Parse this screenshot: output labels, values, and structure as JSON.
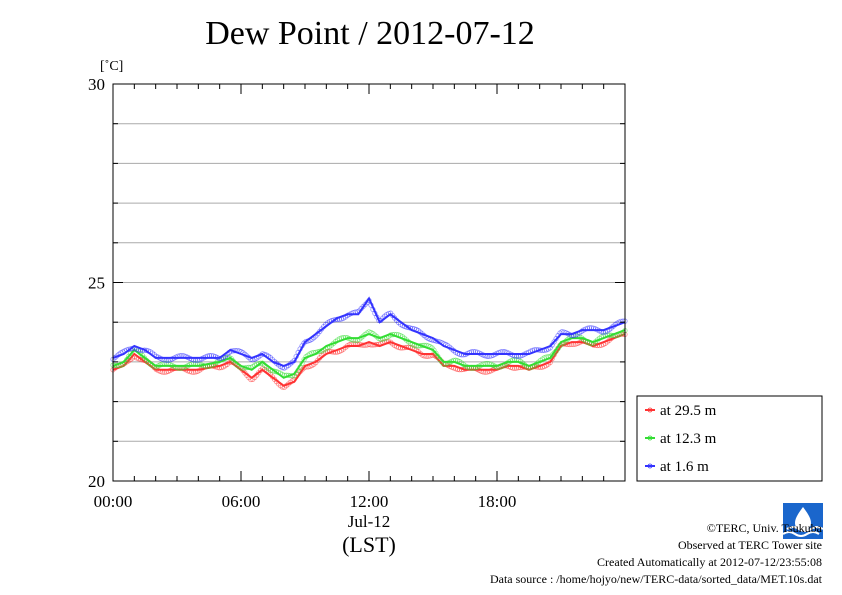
{
  "chart_data": {
    "type": "scatter",
    "title": "Dew Point / 2012-07-12",
    "ylabel": "[˚C]",
    "xlabel": "(LST)",
    "date_label": "Jul-12",
    "xlim": [
      0,
      24
    ],
    "ylim": [
      20,
      30
    ],
    "x_ticks": [
      {
        "value": 0,
        "label": "00:00"
      },
      {
        "value": 6,
        "label": "06:00"
      },
      {
        "value": 12,
        "label": "12:00"
      },
      {
        "value": 18,
        "label": "18:00"
      }
    ],
    "y_ticks": [
      {
        "value": 20,
        "label": "20"
      },
      {
        "value": 25,
        "label": "25"
      },
      {
        "value": 30,
        "label": "30"
      }
    ],
    "grid": true,
    "legend_position": "bottom-right, outside",
    "series": [
      {
        "name": "at 29.5 m",
        "color": "#ff3333",
        "x": [
          0,
          0.5,
          1,
          1.5,
          2,
          3,
          4,
          5,
          5.5,
          6,
          6.5,
          7,
          7.5,
          8,
          8.5,
          9,
          9.5,
          10,
          10.5,
          11,
          11.5,
          12,
          12.5,
          13,
          13.5,
          14,
          14.5,
          15,
          15.5,
          16,
          16.5,
          17,
          17.5,
          18,
          18.5,
          19,
          19.5,
          20,
          20.5,
          21,
          21.5,
          22,
          22.5,
          23,
          23.5,
          24
        ],
        "y": [
          22.8,
          22.9,
          23.2,
          23.0,
          22.8,
          22.8,
          22.8,
          22.9,
          23.0,
          22.8,
          22.6,
          22.8,
          22.6,
          22.4,
          22.5,
          22.9,
          23.0,
          23.2,
          23.3,
          23.4,
          23.4,
          23.5,
          23.4,
          23.5,
          23.4,
          23.3,
          23.2,
          23.2,
          22.9,
          22.9,
          22.8,
          22.8,
          22.8,
          22.8,
          22.9,
          22.9,
          22.8,
          22.9,
          23.0,
          23.4,
          23.5,
          23.5,
          23.4,
          23.5,
          23.6,
          23.7
        ]
      },
      {
        "name": "at 12.3 m",
        "color": "#33dd33",
        "x": [
          0,
          0.5,
          1,
          1.5,
          2,
          3,
          4,
          5,
          5.5,
          6,
          6.5,
          7,
          7.5,
          8,
          8.5,
          9,
          9.5,
          10,
          10.5,
          11,
          11.5,
          12,
          12.5,
          13,
          13.5,
          14,
          14.5,
          15,
          15.5,
          16,
          16.5,
          17,
          17.5,
          18,
          18.5,
          19,
          19.5,
          20,
          20.5,
          21,
          21.5,
          22,
          22.5,
          23,
          23.5,
          24
        ],
        "y": [
          22.9,
          23.0,
          23.3,
          23.1,
          22.9,
          22.9,
          22.9,
          23.0,
          23.1,
          22.9,
          22.8,
          23.0,
          22.8,
          22.6,
          22.7,
          23.1,
          23.2,
          23.4,
          23.5,
          23.6,
          23.6,
          23.7,
          23.6,
          23.7,
          23.6,
          23.5,
          23.4,
          23.3,
          23.0,
          23.0,
          22.9,
          22.9,
          22.9,
          22.9,
          23.0,
          23.0,
          22.9,
          23.0,
          23.1,
          23.5,
          23.6,
          23.6,
          23.5,
          23.6,
          23.7,
          23.8
        ]
      },
      {
        "name": "at 1.6 m",
        "color": "#3333ff",
        "x": [
          0,
          0.5,
          1,
          1.5,
          2,
          3,
          4,
          5,
          5.5,
          6,
          6.5,
          7,
          7.5,
          8,
          8.5,
          9,
          9.5,
          10,
          10.5,
          11,
          11.5,
          12,
          12.5,
          13,
          13.5,
          14,
          14.5,
          15,
          15.5,
          16,
          16.5,
          17,
          17.5,
          18,
          18.5,
          19,
          19.5,
          20,
          20.5,
          21,
          21.5,
          22,
          22.5,
          23,
          23.5,
          24
        ],
        "y": [
          23.1,
          23.2,
          23.4,
          23.3,
          23.1,
          23.1,
          23.1,
          23.1,
          23.3,
          23.2,
          23.1,
          23.2,
          23.0,
          22.9,
          23.0,
          23.5,
          23.7,
          23.9,
          24.1,
          24.2,
          24.2,
          24.6,
          24.0,
          24.2,
          24.0,
          23.8,
          23.7,
          23.6,
          23.4,
          23.3,
          23.2,
          23.2,
          23.2,
          23.2,
          23.2,
          23.2,
          23.2,
          23.3,
          23.4,
          23.7,
          23.7,
          23.8,
          23.8,
          23.8,
          23.9,
          24.0
        ]
      }
    ]
  },
  "credits": {
    "copyright": "©TERC, Univ. Tsukuba",
    "observed": "Observed at TERC Tower site",
    "created": "Created Automatically at 2012-07-12/23:55:08",
    "source": "Data source : /home/hojyo/new/TERC-data/sorted_data/MET.10s.dat"
  }
}
